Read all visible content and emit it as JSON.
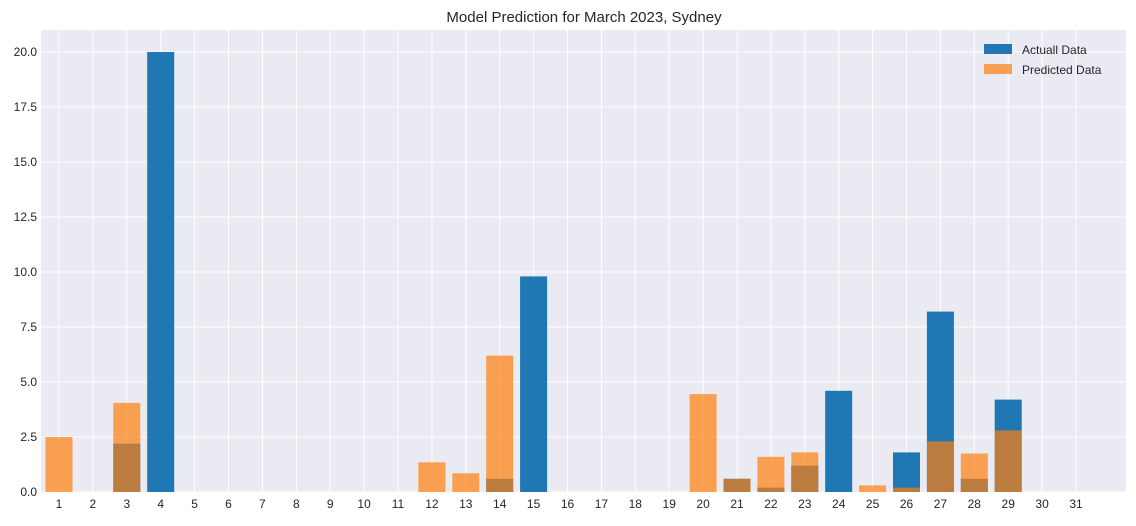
{
  "chart_data": {
    "type": "bar",
    "title": "Model Prediction for March 2023, Sydney",
    "xlabel": "",
    "ylabel": "",
    "categories": [
      "1",
      "2",
      "3",
      "4",
      "5",
      "6",
      "7",
      "8",
      "9",
      "10",
      "11",
      "12",
      "13",
      "14",
      "15",
      "16",
      "17",
      "18",
      "19",
      "20",
      "21",
      "22",
      "23",
      "24",
      "25",
      "26",
      "27",
      "28",
      "29",
      "30",
      "31"
    ],
    "series": [
      {
        "name": "Actuall Data",
        "color": "#1f77b4",
        "values": [
          0,
          0,
          2.2,
          20.0,
          0,
          0,
          0,
          0,
          0,
          0,
          0,
          0,
          0,
          0.6,
          9.8,
          0,
          0,
          0,
          0,
          0,
          0.6,
          0.2,
          1.2,
          4.6,
          0,
          1.8,
          8.2,
          0.6,
          4.2,
          0,
          0
        ]
      },
      {
        "name": "Predicted Data",
        "color": "#ff7f0e",
        "opacity": 0.7,
        "values": [
          2.5,
          0,
          4.05,
          0,
          0,
          0,
          0,
          0,
          0,
          0,
          0,
          1.35,
          0.85,
          6.2,
          0,
          0,
          0,
          0,
          0,
          4.45,
          0.6,
          1.6,
          1.8,
          0,
          0.3,
          0.2,
          2.3,
          1.75,
          2.8,
          0,
          0
        ]
      }
    ],
    "yticks": [
      "0.0",
      "2.5",
      "5.0",
      "7.5",
      "10.0",
      "12.5",
      "15.0",
      "17.5",
      "20.0"
    ],
    "ylim": [
      0,
      21
    ],
    "grid": true,
    "legend_position": "top-right",
    "plot_background": "#eaeaf2",
    "grid_color": "#ffffff"
  }
}
